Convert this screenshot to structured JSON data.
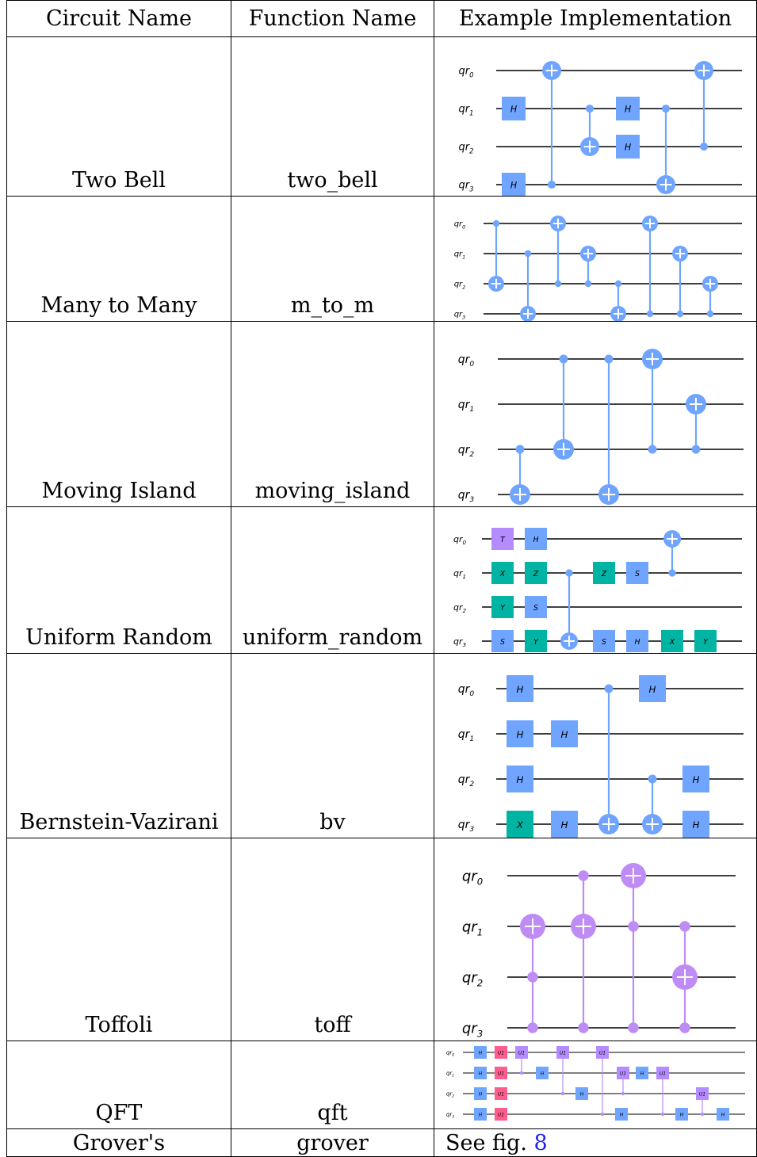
{
  "headers": {
    "circuit_name": "Circuit Name",
    "function_name": "Function Name",
    "example": "Example Implementation"
  },
  "rows": [
    {
      "circuit": "Two Bell",
      "function": "two_bell"
    },
    {
      "circuit": "Many to Many",
      "function": "m_to_m"
    },
    {
      "circuit": "Moving Island",
      "function": "moving_island"
    },
    {
      "circuit": "Uniform Random",
      "function": "uniform_random"
    },
    {
      "circuit": "Bernstein-Vazirani",
      "function": "bv"
    },
    {
      "circuit": "Toffoli",
      "function": "toff"
    },
    {
      "circuit": "QFT",
      "function": "qft"
    },
    {
      "circuit": "Grover's",
      "function": "grover"
    }
  ],
  "grover_ref": {
    "prefix": "See fig. ",
    "link": "8"
  },
  "qubit_labels": [
    "qr0",
    "qr1",
    "qr2",
    "qr3"
  ],
  "gate_labels": {
    "H": "H",
    "X": "X",
    "Y": "Y",
    "Z": "Z",
    "S": "S",
    "T": "T",
    "U1": "U1"
  },
  "colors": {
    "blue_gate": "#6fa4ff",
    "teal_gate": "#00b4a4",
    "purple_gate": "#b48cff",
    "violet": "#bf8cf5",
    "pink_gate": "#ff5c8e",
    "wire": "#000000"
  },
  "circuits": [
    {
      "id": "two_bell",
      "ops": [
        {
          "t": "cx",
          "c": 3,
          "x": 0,
          "col": 1
        },
        {
          "t": "g",
          "q": 1,
          "g": "H",
          "col": 0
        },
        {
          "t": "g",
          "q": 3,
          "g": "H",
          "col": 0
        },
        {
          "t": "cx",
          "c": 1,
          "x": 2,
          "col": 2
        },
        {
          "t": "g",
          "q": 1,
          "g": "H",
          "col": 3
        },
        {
          "t": "g",
          "q": 2,
          "g": "H",
          "col": 3
        },
        {
          "t": "cx",
          "c": 1,
          "x": 3,
          "col": 4
        },
        {
          "t": "cx",
          "c": 2,
          "x": 0,
          "col": 5
        }
      ]
    },
    {
      "id": "m_to_m",
      "ops": [
        {
          "t": "cx",
          "c": 0,
          "x": 2,
          "col": 0
        },
        {
          "t": "cx",
          "c": 1,
          "x": 3,
          "col": 1
        },
        {
          "t": "cx",
          "c": 2,
          "x": 0,
          "col": 2
        },
        {
          "t": "cx",
          "c": 2,
          "x": 1,
          "col": 3
        },
        {
          "t": "cx",
          "c": 2,
          "x": 3,
          "col": 4
        },
        {
          "t": "cx",
          "c": 3,
          "x": 0,
          "col": 5
        },
        {
          "t": "cx",
          "c": 3,
          "x": 1,
          "col": 6
        },
        {
          "t": "cx",
          "c": 3,
          "x": 2,
          "col": 7
        }
      ]
    },
    {
      "id": "moving_island",
      "ops": [
        {
          "t": "cx",
          "c": 2,
          "x": 3,
          "col": 0
        },
        {
          "t": "cx",
          "c": 0,
          "x": 2,
          "col": 1
        },
        {
          "t": "cx",
          "c": 0,
          "x": 3,
          "col": 2
        },
        {
          "t": "cx",
          "c": 2,
          "x": 0,
          "col": 3
        },
        {
          "t": "cx",
          "c": 2,
          "x": 1,
          "col": 4
        }
      ]
    },
    {
      "id": "uniform_random",
      "ops": [
        {
          "t": "g",
          "q": 0,
          "g": "T",
          "col": 0
        },
        {
          "t": "g",
          "q": 1,
          "g": "X",
          "col": 0
        },
        {
          "t": "g",
          "q": 2,
          "g": "Y",
          "col": 0
        },
        {
          "t": "g",
          "q": 3,
          "g": "S",
          "col": 0
        },
        {
          "t": "g",
          "q": 0,
          "g": "H",
          "col": 1
        },
        {
          "t": "g",
          "q": 1,
          "g": "Z",
          "col": 1
        },
        {
          "t": "g",
          "q": 2,
          "g": "S",
          "col": 1
        },
        {
          "t": "g",
          "q": 3,
          "g": "Y",
          "col": 1
        },
        {
          "t": "cx",
          "c": 1,
          "x": 3,
          "col": 2
        },
        {
          "t": "g",
          "q": 1,
          "g": "Z",
          "col": 3
        },
        {
          "t": "g",
          "q": 3,
          "g": "S",
          "col": 3
        },
        {
          "t": "g",
          "q": 1,
          "g": "S",
          "col": 4
        },
        {
          "t": "g",
          "q": 3,
          "g": "H",
          "col": 4
        },
        {
          "t": "cx",
          "c": 1,
          "x": 0,
          "col": 5
        },
        {
          "t": "g",
          "q": 3,
          "g": "X",
          "col": 5
        },
        {
          "t": "g",
          "q": 3,
          "g": "Y",
          "col": 6
        }
      ]
    },
    {
      "id": "bv",
      "ops": [
        {
          "t": "g",
          "q": 0,
          "g": "H",
          "col": 0
        },
        {
          "t": "g",
          "q": 1,
          "g": "H",
          "col": 0
        },
        {
          "t": "g",
          "q": 2,
          "g": "H",
          "col": 0
        },
        {
          "t": "g",
          "q": 3,
          "g": "X",
          "col": 0
        },
        {
          "t": "g",
          "q": 1,
          "g": "H",
          "col": 1
        },
        {
          "t": "g",
          "q": 3,
          "g": "H",
          "col": 1
        },
        {
          "t": "cx",
          "c": 0,
          "x": 3,
          "col": 2
        },
        {
          "t": "g",
          "q": 0,
          "g": "H",
          "col": 3
        },
        {
          "t": "cx",
          "c": 2,
          "x": 3,
          "col": 3
        },
        {
          "t": "g",
          "q": 2,
          "g": "H",
          "col": 4
        },
        {
          "t": "g",
          "q": 3,
          "g": "H",
          "col": 4
        }
      ]
    },
    {
      "id": "toffoli",
      "ops": [
        {
          "t": "ccx",
          "c": [
            2,
            3
          ],
          "x": 1,
          "col": 0
        },
        {
          "t": "ccx",
          "c": [
            0,
            3
          ],
          "x": 1,
          "col": 1
        },
        {
          "t": "ccx",
          "c": [
            1,
            3
          ],
          "x": 0,
          "col": 2
        },
        {
          "t": "ccx",
          "c": [
            1,
            3
          ],
          "x": 2,
          "col": 3
        }
      ]
    },
    {
      "id": "qft",
      "ops": []
    }
  ]
}
